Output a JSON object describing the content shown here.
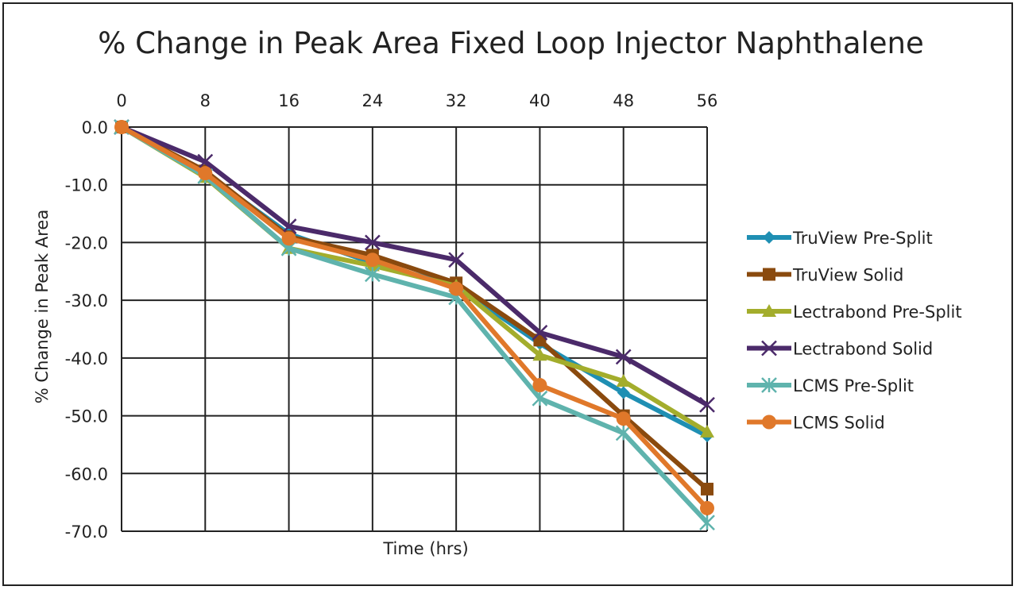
{
  "chart_data": {
    "type": "line",
    "title": "% Change in Peak Area Fixed Loop Injector Naphthalene",
    "xlabel": "Time (hrs)",
    "ylabel": "% Change in Peak Area",
    "x": [
      0,
      8,
      16,
      24,
      32,
      40,
      48,
      56
    ],
    "x_ticks": [
      "0",
      "8",
      "16",
      "24",
      "32",
      "40",
      "48",
      "56"
    ],
    "x_axis_position": "top",
    "xlim": [
      0,
      56
    ],
    "ylim": [
      -70,
      0
    ],
    "y_ticks": [
      "0.0",
      "-10.0",
      "-20.0",
      "-30.0",
      "-40.0",
      "-50.0",
      "-60.0",
      "-70.0"
    ],
    "y_tick_values": [
      0,
      -10,
      -20,
      -30,
      -40,
      -50,
      -60,
      -70
    ],
    "grid": true,
    "legend_position": "right",
    "series": [
      {
        "name": "TruView Pre-Split",
        "color": "#1f8fb3",
        "marker": "diamond",
        "values": [
          0,
          -8,
          -18.5,
          -23.5,
          -27.5,
          -37.5,
          -46,
          -53.5
        ]
      },
      {
        "name": "TruView Solid",
        "color": "#8a4a0e",
        "marker": "square",
        "values": [
          0,
          -7.6,
          -19,
          -22.2,
          -27,
          -36.9,
          -50,
          -62.7
        ]
      },
      {
        "name": "Lectrabond Pre-Split",
        "color": "#a3ad2c",
        "marker": "triangle",
        "values": [
          0,
          -8.7,
          -21,
          -24,
          -27.5,
          -39.5,
          -44,
          -52.8
        ]
      },
      {
        "name": "Lectrabond Solid",
        "color": "#4b2a6a",
        "marker": "x",
        "values": [
          0,
          -6,
          -17.2,
          -20,
          -23,
          -35.6,
          -39.8,
          -48.1
        ]
      },
      {
        "name": "LCMS Pre-Split",
        "color": "#5fb3ad",
        "marker": "asterisk",
        "values": [
          0,
          -8.5,
          -21,
          -25.5,
          -29.5,
          -47,
          -53,
          -68.5
        ]
      },
      {
        "name": "LCMS Solid",
        "color": "#e0782a",
        "marker": "circle",
        "values": [
          0,
          -8,
          -19.3,
          -23,
          -28,
          -44.7,
          -50.5,
          -66
        ]
      }
    ]
  }
}
